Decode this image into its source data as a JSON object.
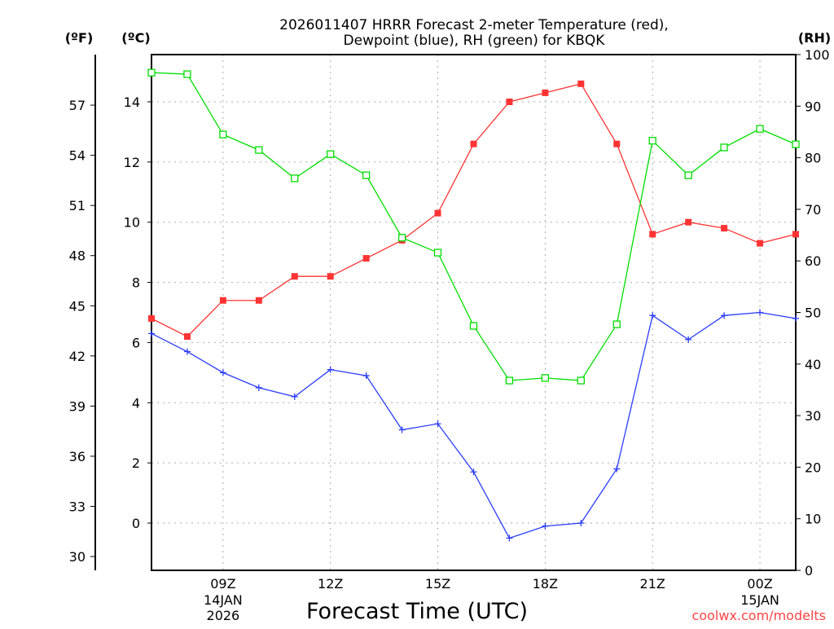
{
  "chart_data": {
    "type": "line",
    "title_lines": [
      "2026011407 HRRR Forecast 2-meter Temperature (red),",
      "Dewpoint (blue), RH (green) for KBQK"
    ],
    "xlabel": "Forecast Time (UTC)",
    "unit_labels": {
      "f": "(ºF)",
      "c": "(ºC)",
      "rh": "(RH)"
    },
    "credit": "coolwx.com/modelts",
    "x_hours": [
      7,
      8,
      9,
      10,
      11,
      12,
      13,
      14,
      15,
      16,
      17,
      18,
      19,
      20,
      21,
      22,
      23,
      24,
      25
    ],
    "xlim": [
      7,
      25
    ],
    "x_ticks": [
      {
        "hour": 9,
        "label": "09Z",
        "sub": [
          "14JAN",
          "2026"
        ]
      },
      {
        "hour": 12,
        "label": "12Z",
        "sub": []
      },
      {
        "hour": 15,
        "label": "15Z",
        "sub": []
      },
      {
        "hour": 18,
        "label": "18Z",
        "sub": []
      },
      {
        "hour": 21,
        "label": "21Z",
        "sub": []
      },
      {
        "hour": 24,
        "label": "00Z",
        "sub": [
          "15JAN"
        ]
      }
    ],
    "ylim_c": [
      -1.57,
      15.57
    ],
    "yticks_c": [
      0,
      2,
      4,
      6,
      8,
      10,
      12,
      14
    ],
    "yticks_f": [
      30,
      33,
      36,
      39,
      42,
      45,
      48,
      51,
      54,
      57
    ],
    "ylim_rh": [
      0,
      100
    ],
    "yticks_rh": [
      0,
      10,
      20,
      30,
      40,
      50,
      60,
      70,
      80,
      90,
      100
    ],
    "series": [
      {
        "name": "Temperature",
        "axis": "c",
        "color": "#ff3333",
        "marker": "filled-square",
        "values": [
          6.8,
          6.2,
          7.4,
          7.4,
          8.2,
          8.2,
          8.8,
          9.4,
          10.3,
          12.6,
          14.0,
          14.3,
          14.6,
          12.6,
          9.6,
          10.0,
          9.8,
          9.3,
          9.6
        ]
      },
      {
        "name": "Dewpoint",
        "axis": "c",
        "color": "#2a3cff",
        "marker": "plus",
        "values": [
          6.3,
          5.7,
          5.0,
          4.5,
          4.2,
          5.1,
          4.9,
          3.1,
          3.3,
          1.7,
          -0.5,
          -0.1,
          0.0,
          1.8,
          6.9,
          6.1,
          6.9,
          7.0,
          6.8
        ]
      },
      {
        "name": "RH",
        "axis": "rh",
        "color": "#00dd00",
        "marker": "open-square",
        "values": [
          96.5,
          96.2,
          84.5,
          81.5,
          76.0,
          80.7,
          76.6,
          64.5,
          61.6,
          47.4,
          36.8,
          37.3,
          36.8,
          47.7,
          83.3,
          76.6,
          82.0,
          85.6,
          82.6
        ]
      }
    ],
    "grid": true
  }
}
